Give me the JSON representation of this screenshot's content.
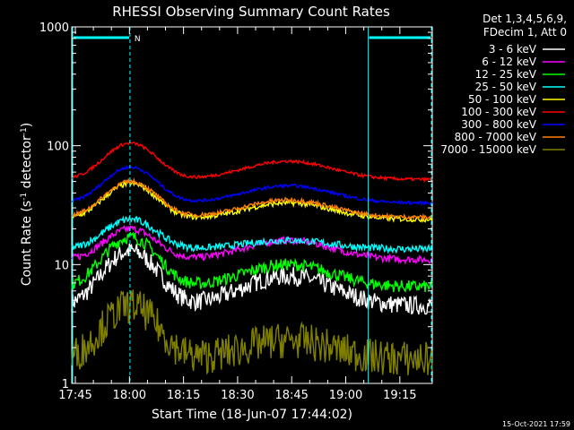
{
  "chart_data": {
    "type": "line",
    "title": "RHESSI Observing Summary Count Rates",
    "xlabel": "Start Time (18-Jun-07 17:44:02)",
    "ylabel_main": "Count Rate (s",
    "ylabel_sup1": "-1",
    "ylabel_mid": " detector",
    "ylabel_sup2": "-1",
    "ylabel_end": ")",
    "y_scale": "log",
    "ylim": [
      1,
      1000
    ],
    "xlim_minutes": [
      0,
      100
    ],
    "x_ticks": [
      {
        "label": "17:45",
        "min": 1
      },
      {
        "label": "18:00",
        "min": 16
      },
      {
        "label": "18:15",
        "min": 31
      },
      {
        "label": "18:30",
        "min": 46
      },
      {
        "label": "18:45",
        "min": 61
      },
      {
        "label": "19:00",
        "min": 76
      },
      {
        "label": "19:15",
        "min": 91
      }
    ],
    "y_ticks": [
      {
        "label": "1",
        "value": 1
      },
      {
        "label": "10",
        "value": 10
      },
      {
        "label": "100",
        "value": 100
      },
      {
        "label": "1000",
        "value": 1000
      }
    ],
    "legend_header": [
      "Det 1,3,4,5,6,9,",
      "FDecim 1, Att 0"
    ],
    "legend_placement": "right",
    "night_intervals_minutes": [
      [
        0,
        16.4
      ],
      [
        82,
        100
      ]
    ],
    "night_marker_label": "N",
    "series": [
      {
        "name": "3 - 6 keV",
        "color": "#ffffff",
        "base": 4.5,
        "peak": 13,
        "hump": 8,
        "noise": 0.18
      },
      {
        "name": "6 - 12 keV",
        "color": "#ff00ff",
        "base": 11,
        "peak": 20,
        "hump": 16,
        "noise": 0.07
      },
      {
        "name": "12 - 25 keV",
        "color": "#00ff00",
        "base": 6.5,
        "peak": 17,
        "hump": 10,
        "noise": 0.12
      },
      {
        "name": "25 - 50 keV",
        "color": "#00ffff",
        "base": 13.5,
        "peak": 24,
        "hump": 16,
        "noise": 0.07
      },
      {
        "name": "50 - 100 keV",
        "color": "#ffff00",
        "base": 24,
        "peak": 48,
        "hump": 33,
        "noise": 0.05
      },
      {
        "name": "100 - 300 keV",
        "color": "#ff0000",
        "base": 52,
        "peak": 105,
        "hump": 74,
        "noise": 0.03
      },
      {
        "name": "300 - 800 keV",
        "color": "#0000ff",
        "base": 33,
        "peak": 66,
        "hump": 46,
        "noise": 0.03
      },
      {
        "name": "800 - 7000 keV",
        "color": "#ff8000",
        "base": 25,
        "peak": 50,
        "hump": 35,
        "noise": 0.04
      },
      {
        "name": "7000 - 15000 keV",
        "color": "#808000",
        "base": 1.6,
        "peak": 4.5,
        "hump": 2.3,
        "noise": 0.35
      }
    ]
  },
  "footer": {
    "timestamp": "15-Oct-2021 17:59"
  }
}
